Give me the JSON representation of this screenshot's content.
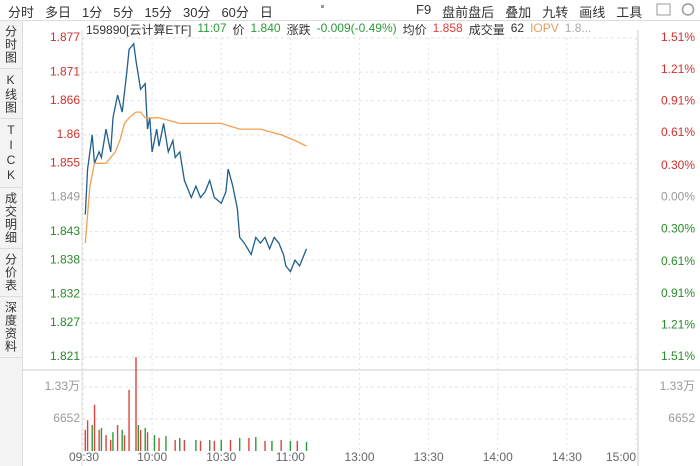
{
  "toolbar": {
    "left": [
      "分时",
      "多日",
      "1分",
      "5分",
      "15分",
      "30分",
      "60分",
      "日"
    ],
    "right": [
      "F9",
      "盘前盘后",
      "叠加",
      "九转",
      "画线",
      "工具"
    ]
  },
  "side_tabs": [
    "分时图",
    "K线图",
    "TICK",
    "成交明细",
    "分价表",
    "深度资料"
  ],
  "info": {
    "code": "159890[云计算ETF]",
    "time": "11:07",
    "price_label": "价",
    "price": "1.840",
    "change_label": "涨跌",
    "change": "-0.009(-0.49%)",
    "avg_label": "均价",
    "avg": "1.858",
    "vol_label": "成交量",
    "vol": "62",
    "iopv_label": "IOPV",
    "iopv": "1.8..."
  },
  "chart_data": {
    "type": "line",
    "xlim": [
      0,
      240
    ],
    "xticks": [
      {
        "value": 0,
        "label": "09:30"
      },
      {
        "value": 30,
        "label": "10:00"
      },
      {
        "value": 60,
        "label": "10:30"
      },
      {
        "value": 90,
        "label": "11:00"
      },
      {
        "value": 120,
        "label": "13:00"
      },
      {
        "value": 150,
        "label": "13:30"
      },
      {
        "value": 180,
        "label": "14:00"
      },
      {
        "value": 210,
        "label": "14:30"
      },
      {
        "value": 240,
        "label": "15:00"
      }
    ],
    "ylim": [
      1.821,
      1.877
    ],
    "yticks": [
      1.877,
      1.871,
      1.866,
      1.86,
      1.855,
      1.849,
      1.843,
      1.838,
      1.832,
      1.827,
      1.821
    ],
    "y2lim": [
      -1.51,
      1.51
    ],
    "y2ticks": [
      {
        "value": 1.51,
        "label": "1.51%"
      },
      {
        "value": 1.21,
        "label": "1.21%"
      },
      {
        "value": 0.91,
        "label": "0.91%"
      },
      {
        "value": 0.61,
        "label": "0.61%"
      },
      {
        "value": 0.3,
        "label": "0.30%"
      },
      {
        "value": 0,
        "label": "0.00%"
      },
      {
        "value": -0.3,
        "label": "0.30%"
      },
      {
        "value": -0.61,
        "label": "0.61%"
      },
      {
        "value": -0.91,
        "label": "0.91%"
      },
      {
        "value": -1.21,
        "label": "1.21%"
      },
      {
        "value": -1.51,
        "label": "1.51%"
      }
    ],
    "grid": true,
    "series": [
      {
        "color": "#1f5f8b",
        "x": [
          1,
          2,
          4,
          5,
          7,
          8,
          10,
          12,
          13,
          15,
          17,
          19,
          20,
          22,
          23,
          25,
          27,
          28,
          29,
          30,
          32,
          33,
          35,
          37,
          39,
          40,
          42,
          44,
          47,
          49,
          51,
          53,
          55,
          57,
          60,
          62,
          63,
          65,
          67,
          68,
          70,
          73,
          75,
          77,
          79,
          81,
          83,
          85,
          87,
          88,
          90,
          92,
          94,
          95,
          97
        ],
        "values": [
          1.846,
          1.854,
          1.86,
          1.855,
          1.857,
          1.856,
          1.861,
          1.857,
          1.863,
          1.867,
          1.864,
          1.871,
          1.875,
          1.876,
          1.873,
          1.868,
          1.869,
          1.861,
          1.863,
          1.857,
          1.861,
          1.858,
          1.862,
          1.857,
          1.859,
          1.856,
          1.857,
          1.852,
          1.849,
          1.851,
          1.849,
          1.85,
          1.852,
          1.849,
          1.848,
          1.85,
          1.854,
          1.851,
          1.847,
          1.842,
          1.841,
          1.839,
          1.842,
          1.841,
          1.842,
          1.84,
          1.842,
          1.841,
          1.839,
          1.837,
          1.836,
          1.838,
          1.837,
          1.838,
          1.84
        ]
      },
      {
        "color": "#f0a050",
        "x": [
          1,
          3,
          5,
          7,
          10,
          12,
          14,
          16,
          18,
          20,
          23,
          25,
          27,
          29,
          33,
          42,
          51,
          60,
          68,
          77,
          86,
          92,
          97
        ],
        "values": [
          1.841,
          1.851,
          1.855,
          1.855,
          1.855,
          1.856,
          1.857,
          1.859,
          1.862,
          1.863,
          1.864,
          1.864,
          1.863,
          1.863,
          1.863,
          1.862,
          1.862,
          1.862,
          1.861,
          1.861,
          1.86,
          1.859,
          1.858
        ]
      }
    ],
    "volume": {
      "ylim": [
        0,
        19950
      ],
      "yticks": [
        {
          "value": 13300,
          "label": "1.33万"
        },
        6652
      ],
      "series": [
        {
          "color": "#e0413c",
          "x": [
            1,
            2,
            5,
            7,
            10,
            12,
            15,
            18,
            20,
            23,
            25,
            28,
            33,
            40,
            44,
            51,
            57,
            64,
            72,
            79,
            86,
            93
          ],
          "values": [
            4400,
            6400,
            9600,
            4400,
            3300,
            2300,
            5400,
            3300,
            12700,
            19500,
            4400,
            3900,
            2700,
            2300,
            2300,
            2100,
            2100,
            2300,
            2700,
            2100,
            2300,
            2100
          ]
        },
        {
          "color": "#2a9a3a",
          "x": [
            4,
            8,
            13,
            17,
            24,
            27,
            31,
            36,
            42,
            49,
            55,
            60,
            68,
            75,
            82,
            90,
            97
          ],
          "values": [
            5400,
            4800,
            3900,
            4400,
            5400,
            4800,
            3300,
            3100,
            2700,
            2300,
            2300,
            2300,
            2700,
            2900,
            2100,
            2100,
            1900
          ]
        }
      ]
    }
  }
}
